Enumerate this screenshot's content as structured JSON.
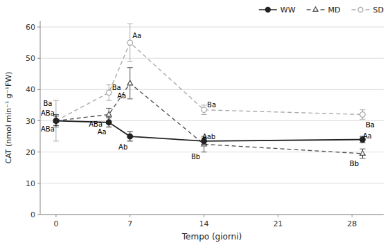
{
  "chart_data": {
    "type": "line",
    "xlabel": "Tempo (giorni)",
    "ylabel": "CAT (nmol min⁻¹ g⁻¹FW)",
    "x": [
      0,
      5,
      7,
      14,
      29
    ],
    "series": [
      {
        "name": "WW",
        "color": "#222222",
        "marker": "filled-circle",
        "line_style": "solid",
        "values": [
          30,
          29.5,
          25,
          23.5,
          24.0
        ],
        "errors": [
          1.5,
          1.5,
          1.5,
          1.0,
          1.0
        ],
        "annotations": [
          "ABa",
          "Aa",
          "Ab",
          "Aab",
          "Aa"
        ]
      },
      {
        "name": "MD",
        "color": "#555555",
        "marker": "open-triangle",
        "line_style": "dashed",
        "values": [
          30,
          32,
          42,
          22.5,
          19.5
        ],
        "errors": [
          2.0,
          2.0,
          5.0,
          2.5,
          1.5
        ],
        "annotations": [
          "ABa",
          "ABa",
          "Aa",
          "Bb",
          "Bb"
        ]
      },
      {
        "name": "SD",
        "color": "#aaaaaa",
        "marker": "open-circle",
        "line_style": "dashed",
        "values": [
          30,
          39,
          55,
          33.5,
          32
        ],
        "errors": [
          6.5,
          2.5,
          6.0,
          1.5,
          1.5
        ],
        "annotations": [
          "Ba",
          "Ba",
          "Aa",
          "Ba",
          "Ba"
        ]
      }
    ],
    "xlim": [
      -1.5,
      31
    ],
    "ylim": [
      0,
      62
    ],
    "xticks": [
      0,
      7,
      14,
      21,
      28
    ],
    "yticks": [
      0,
      10,
      20,
      30,
      40,
      50,
      60
    ],
    "grid": true,
    "legend": "upper right"
  }
}
